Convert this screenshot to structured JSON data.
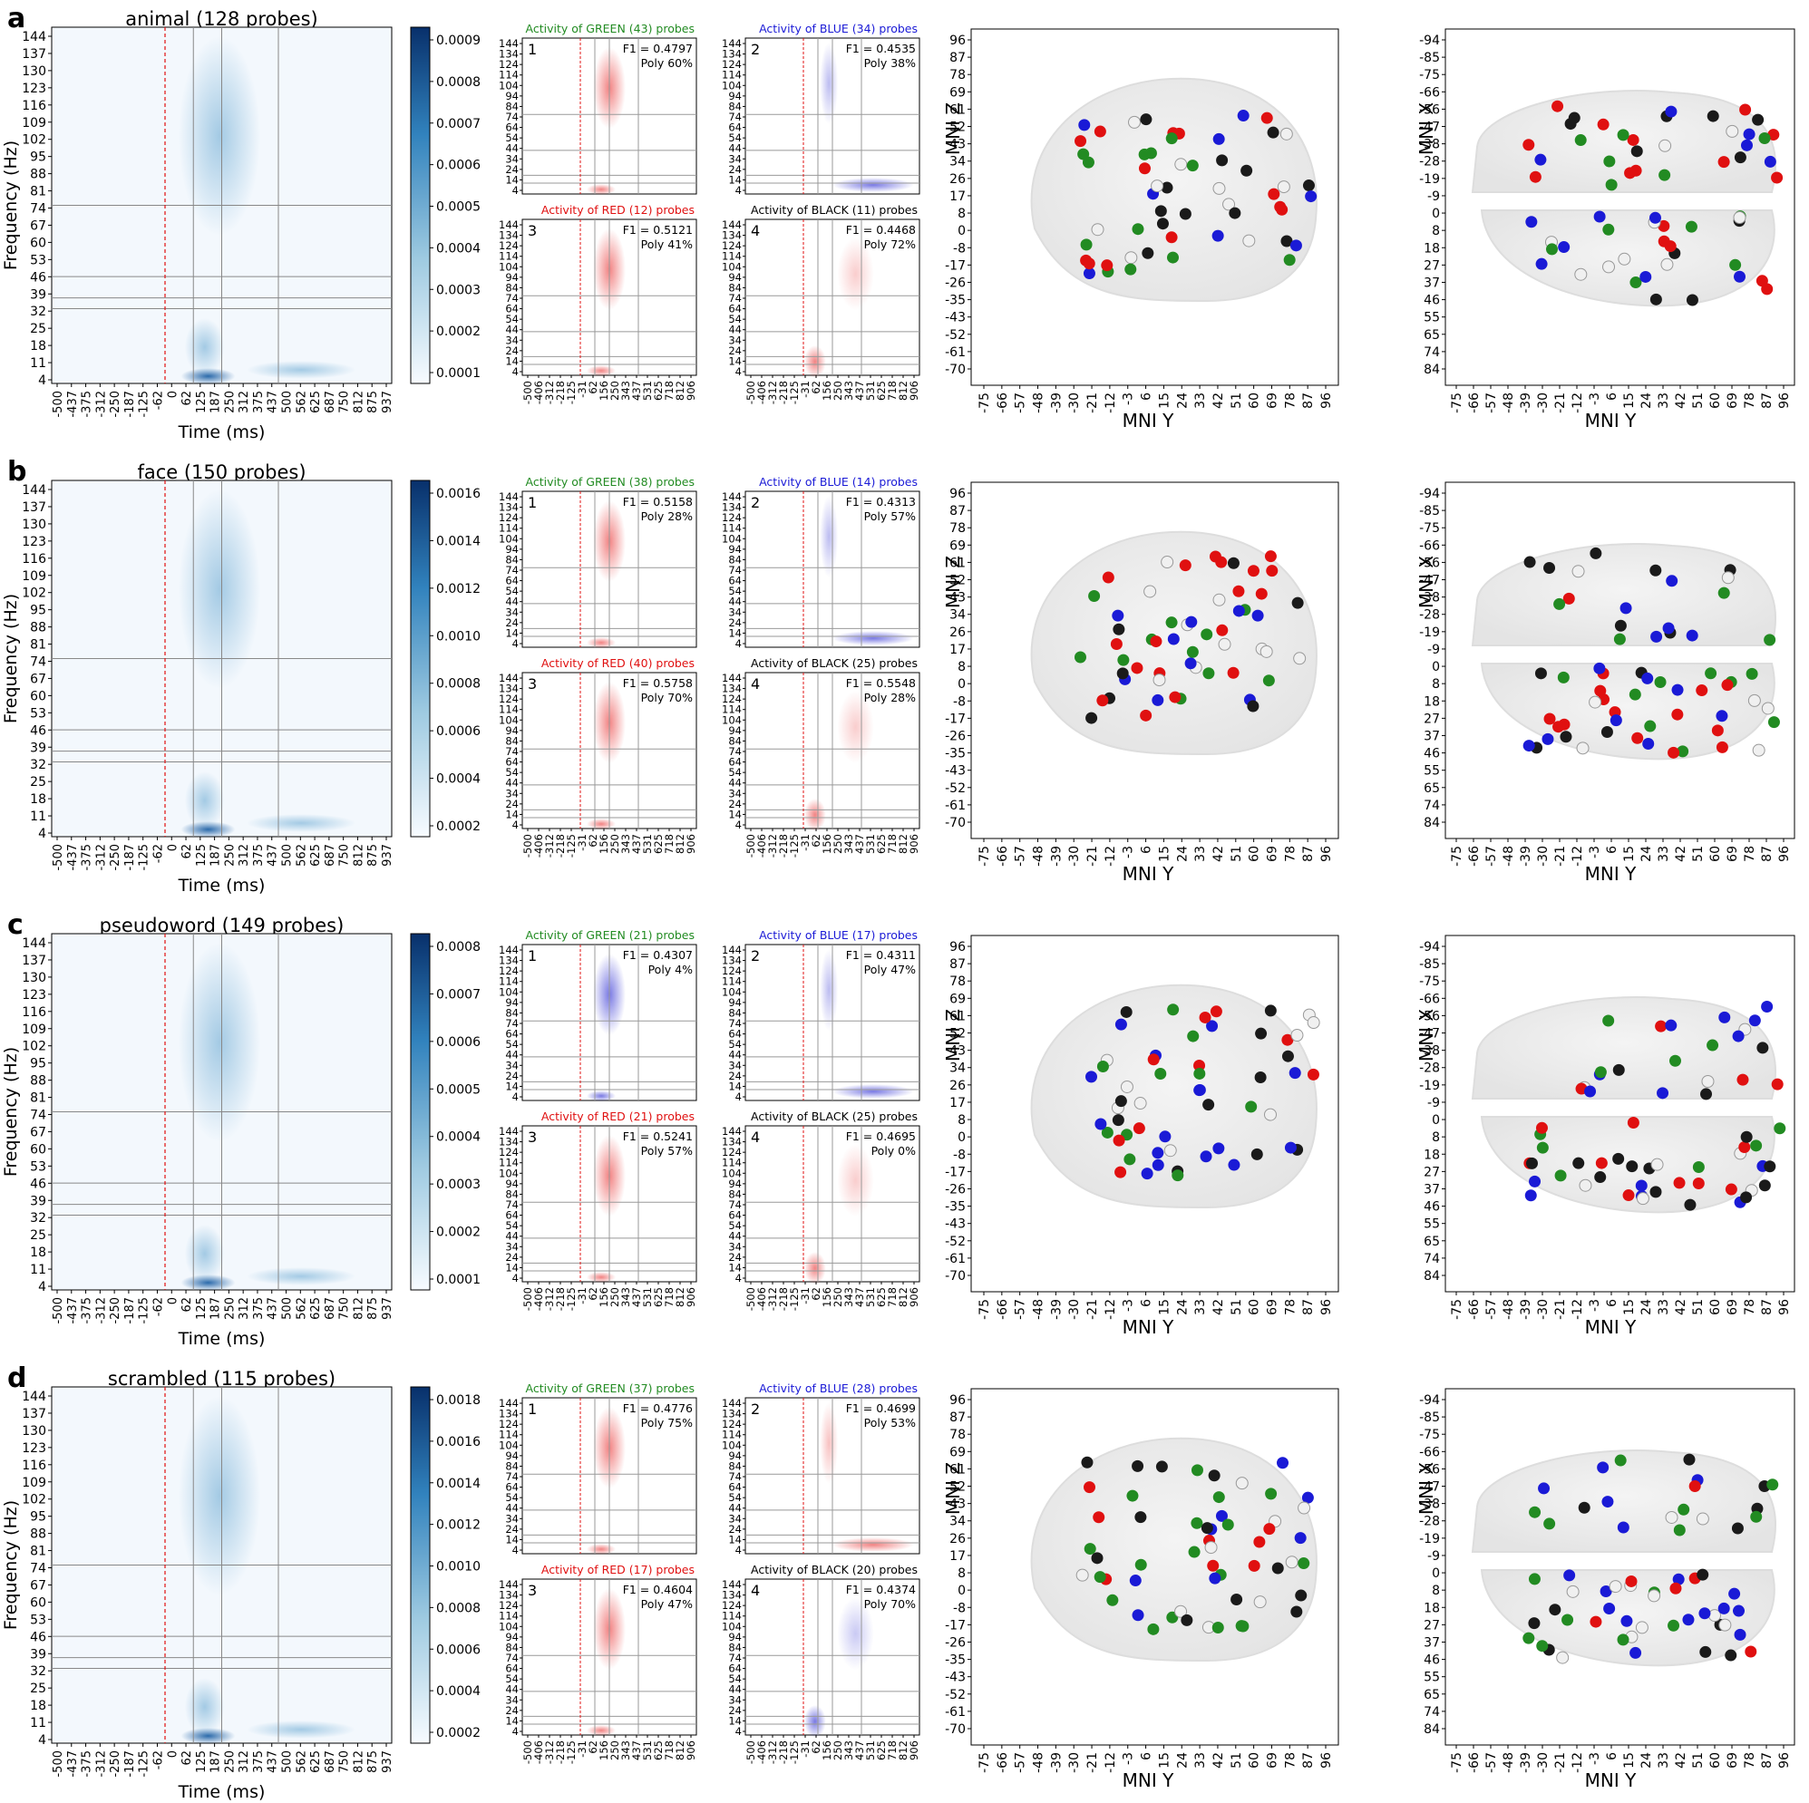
{
  "figure": {
    "heatmap_y_ticks": [
      "144",
      "137",
      "130",
      "123",
      "116",
      "109",
      "102",
      "95",
      "88",
      "81",
      "74",
      "67",
      "60",
      "53",
      "46",
      "39",
      "32",
      "25",
      "18",
      "11",
      "4"
    ],
    "heatmap_x_ticks": [
      "-500",
      "-437",
      "-375",
      "-312",
      "-250",
      "-187",
      "-125",
      "-62",
      "0",
      "62",
      "125",
      "187",
      "250",
      "312",
      "375",
      "437",
      "500",
      "562",
      "625",
      "687",
      "750",
      "812",
      "875",
      "937"
    ],
    "small_y_ticks": [
      "144",
      "134",
      "124",
      "114",
      "104",
      "94",
      "84",
      "74",
      "64",
      "54",
      "44",
      "34",
      "24",
      "14",
      "4"
    ],
    "small_x_ticks": [
      "-500",
      "-406",
      "-312",
      "-218",
      "-125",
      "-31",
      "62",
      "156",
      "250",
      "343",
      "437",
      "531",
      "625",
      "718",
      "812",
      "906"
    ],
    "mni_y_ticks": [
      "-75",
      "-66",
      "-57",
      "-48",
      "-39",
      "-30",
      "-21",
      "-12",
      "-3",
      "6",
      "15",
      "24",
      "33",
      "42",
      "51",
      "60",
      "69",
      "78",
      "87",
      "96"
    ],
    "mni_z_ticks": [
      "96",
      "87",
      "78",
      "69",
      "61",
      "52",
      "43",
      "34",
      "26",
      "17",
      "8",
      "0",
      "-8",
      "-17",
      "-26",
      "-35",
      "-43",
      "-52",
      "-61",
      "-70"
    ],
    "mni_x_ticks": [
      "-94",
      "-85",
      "-75",
      "-66",
      "-56",
      "-47",
      "-38",
      "-28",
      "-19",
      "-9",
      "0",
      "8",
      "18",
      "27",
      "37",
      "46",
      "55",
      "65",
      "74",
      "84"
    ],
    "labels": {
      "ylabel_freq": "Frequency (Hz)",
      "xlabel_time": "Time (ms)",
      "mni_y": "MNI Y",
      "mni_z": "MNI Z",
      "mni_x": "MNI X"
    },
    "colors": {
      "green": "#228b22",
      "blue": "#1a1ad6",
      "red": "#e01010",
      "black": "#1a1a1a",
      "heat": "#08519c"
    }
  },
  "chart_data": [
    {
      "panel": "a",
      "type": "heatmap",
      "title": "animal (128 probes)",
      "colorbar_ticks": [
        "0.0009",
        "0.0008",
        "0.0007",
        "0.0006",
        "0.0005",
        "0.0004",
        "0.0003",
        "0.0002",
        "0.0001"
      ],
      "clusters": [
        {
          "index": "1",
          "title": "Activity of GREEN (43) probes",
          "f1": "F1 = 0.4797",
          "poly": "Poly 60%",
          "color": "red"
        },
        {
          "index": "2",
          "title": "Activity of BLUE (34) probes",
          "f1": "F1 = 0.4535",
          "poly": "Poly 38%",
          "color": "blue"
        },
        {
          "index": "3",
          "title": "Activity of RED (12) probes",
          "f1": "F1 = 0.5121",
          "poly": "Poly 41%",
          "color": "red"
        },
        {
          "index": "4",
          "title": "Activity of BLACK (11) probes",
          "f1": "F1 = 0.4468",
          "poly": "Poly 72%",
          "color": "red"
        }
      ]
    },
    {
      "panel": "b",
      "type": "heatmap",
      "title": "face  (150 probes)",
      "colorbar_ticks": [
        "0.0016",
        "0.0014",
        "0.0012",
        "0.0010",
        "0.0008",
        "0.0006",
        "0.0004",
        "0.0002"
      ],
      "clusters": [
        {
          "index": "1",
          "title": "Activity of GREEN (38) probes",
          "f1": "F1 = 0.5158",
          "poly": "Poly 28%",
          "color": "red"
        },
        {
          "index": "2",
          "title": "Activity of BLUE (14) probes",
          "f1": "F1 = 0.4313",
          "poly": "Poly 57%",
          "color": "blue"
        },
        {
          "index": "3",
          "title": "Activity of RED (40) probes",
          "f1": "F1 = 0.5758",
          "poly": "Poly 70%",
          "color": "red"
        },
        {
          "index": "4",
          "title": "Activity of BLACK (25) probes",
          "f1": "F1 = 0.5548",
          "poly": "Poly 28%",
          "color": "red"
        }
      ]
    },
    {
      "panel": "c",
      "type": "heatmap",
      "title": "pseudoword (149 probes)",
      "colorbar_ticks": [
        "0.0008",
        "0.0007",
        "0.0006",
        "0.0005",
        "0.0004",
        "0.0003",
        "0.0002",
        "0.0001"
      ],
      "clusters": [
        {
          "index": "1",
          "title": "Activity of GREEN (21) probes",
          "f1": "F1 = 0.4307",
          "poly": "Poly 4%",
          "color": "blue"
        },
        {
          "index": "2",
          "title": "Activity of BLUE (17) probes",
          "f1": "F1 = 0.4311",
          "poly": "Poly 47%",
          "color": "blue"
        },
        {
          "index": "3",
          "title": "Activity of RED (21) probes",
          "f1": "F1 = 0.5241",
          "poly": "Poly 57%",
          "color": "red"
        },
        {
          "index": "4",
          "title": "Activity of BLACK (25) probes",
          "f1": "F1 = 0.4695",
          "poly": "Poly 0%",
          "color": "red"
        }
      ]
    },
    {
      "panel": "d",
      "type": "heatmap",
      "title": "scrambled (115 probes)",
      "colorbar_ticks": [
        "0.0018",
        "0.0016",
        "0.0014",
        "0.0012",
        "0.0010",
        "0.0008",
        "0.0006",
        "0.0004",
        "0.0002"
      ],
      "clusters": [
        {
          "index": "1",
          "title": "Activity of GREEN (37) probes",
          "f1": "F1 = 0.4776",
          "poly": "Poly 75%",
          "color": "red"
        },
        {
          "index": "2",
          "title": "Activity of BLUE (28) probes",
          "f1": "F1 = 0.4699",
          "poly": "Poly 53%",
          "color": "red"
        },
        {
          "index": "3",
          "title": "Activity of RED (17) probes",
          "f1": "F1 = 0.4604",
          "poly": "Poly 47%",
          "color": "red"
        },
        {
          "index": "4",
          "title": "Activity of BLACK (20) probes",
          "f1": "F1 = 0.4374",
          "poly": "Poly 70%",
          "color": "blue"
        }
      ]
    }
  ]
}
